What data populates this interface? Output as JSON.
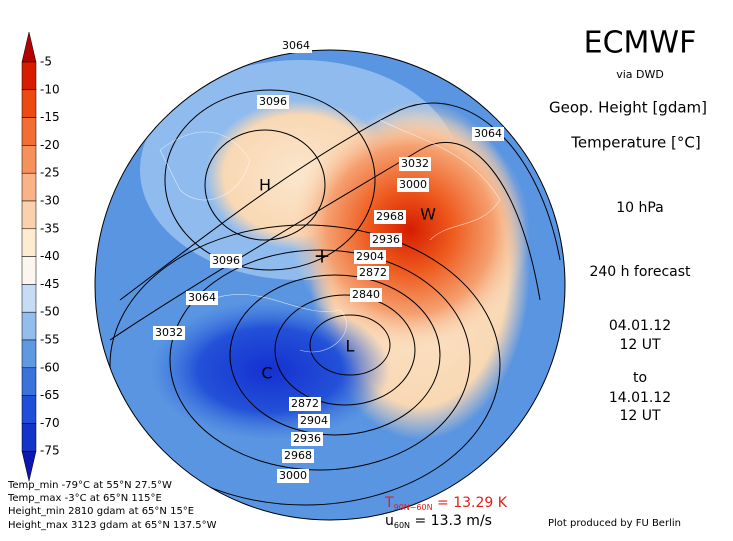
{
  "header": {
    "title": "ECMWF",
    "source": "via DWD",
    "parameters": [
      "Geop. Height [gdam]",
      "Temperature [°C]"
    ],
    "level": "10 hPa",
    "forecast": "240 h forecast",
    "init_date": "04.01.12",
    "init_time": "12 UT",
    "to": "to",
    "valid_date": "14.01.12",
    "valid_time": "12 UT"
  },
  "colorbar": {
    "levels": [
      -5,
      -10,
      -15,
      -20,
      -25,
      -30,
      -35,
      -40,
      -45,
      -50,
      -55,
      -60,
      -65,
      -70,
      -75
    ],
    "colors": [
      "#b30000",
      "#d81c00",
      "#ec4a10",
      "#f26e32",
      "#f5915a",
      "#f8b486",
      "#fad1ad",
      "#fdebd2",
      "#fbf7ee",
      "#c6dcf4",
      "#93bdec",
      "#5f99e2",
      "#3a73dc",
      "#1f4fd8",
      "#1433c9",
      "#0a18b0"
    ]
  },
  "map": {
    "contour_labels": [
      "3064",
      "3096",
      "3064",
      "3032",
      "3000",
      "2968",
      "2936",
      "2904",
      "2872",
      "2840",
      "3096",
      "3064",
      "3032",
      "2872",
      "2904",
      "2936",
      "2968",
      "3000"
    ],
    "markers": [
      "H",
      "W",
      "L",
      "C"
    ]
  },
  "stats": [
    "Temp_min -79°C at 55°N 27.5°W",
    "Temp_max -3°C at 65°N 115°E",
    "Height_min 2810 gdam at 65°N 15°E",
    "Height_max 3123 gdam at 65°N 137.5°W"
  ],
  "footer": {
    "temp_symbol": "T",
    "temp_subscript": "90N−60N",
    "temp_value": " = 13.29 K",
    "wind_symbol": "u",
    "wind_subscript": "60N",
    "wind_value": " = 13.3 m/s",
    "credit": "Plot produced by FU Berlin"
  }
}
